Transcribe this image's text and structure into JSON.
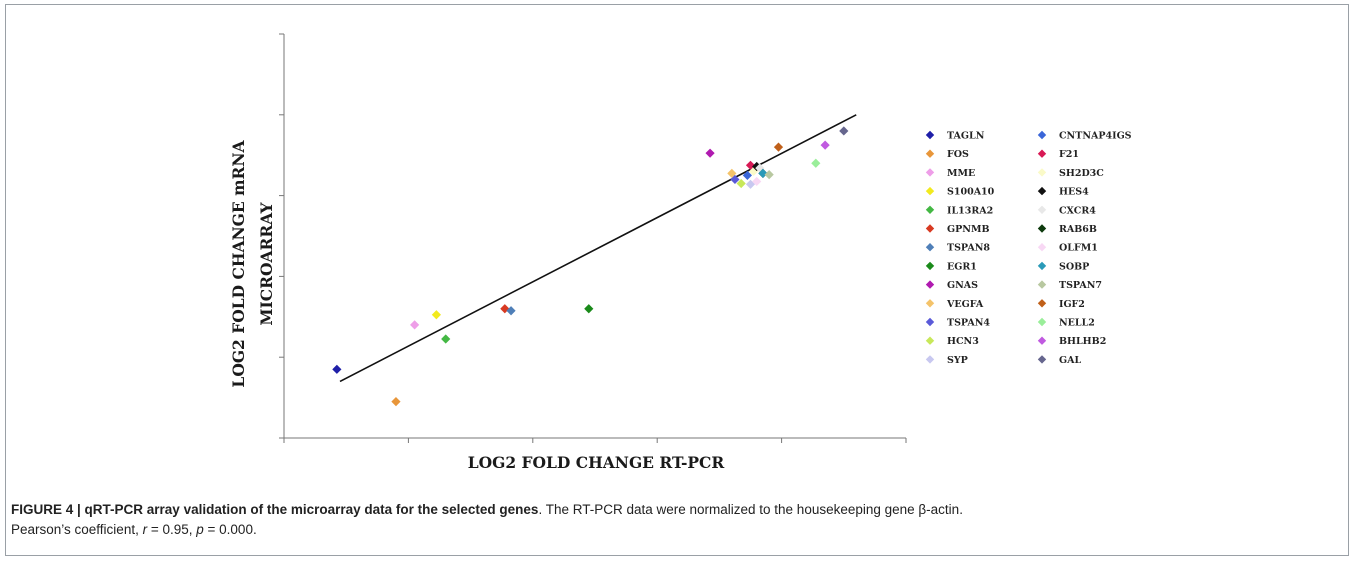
{
  "chart_data": {
    "type": "scatter",
    "xlabel": "LOG2 FOLD CHANGE RT-PCR",
    "ylabel_line1": "LOG2 FOLD CHANGE mRNA",
    "ylabel_line2": "MICROARRAY",
    "xlim": [
      -3,
      7
    ],
    "ylim": [
      -5,
      5
    ],
    "grid": false,
    "legend_position": "right",
    "trendline": {
      "from": [
        -2.1,
        -3.6
      ],
      "to": [
        6.2,
        3.0
      ]
    },
    "series": [
      {
        "name": "TAGLN",
        "color": "#1f1fa8",
        "x": -2.15,
        "y": -3.3
      },
      {
        "name": "FOS",
        "color": "#e8963a",
        "x": -1.2,
        "y": -4.1
      },
      {
        "name": "MME",
        "color": "#ee9ee8",
        "x": -0.9,
        "y": -2.2
      },
      {
        "name": "S100A10",
        "color": "#f2ea1e",
        "x": -0.55,
        "y": -1.95
      },
      {
        "name": "IL13RA2",
        "color": "#44b844",
        "x": -0.4,
        "y": -2.55
      },
      {
        "name": "GPNMB",
        "color": "#d83a22",
        "x": 0.55,
        "y": -1.8
      },
      {
        "name": "TSPAN8",
        "color": "#4f7fb8",
        "x": 0.65,
        "y": -1.85
      },
      {
        "name": "EGR1",
        "color": "#1a8a1a",
        "x": 1.9,
        "y": -1.8
      },
      {
        "name": "GNAS",
        "color": "#b01ab0",
        "x": 3.85,
        "y": 2.05
      },
      {
        "name": "VEGFA",
        "color": "#f4c36a",
        "x": 4.2,
        "y": 1.55
      },
      {
        "name": "TSPAN4",
        "color": "#5a5ad8",
        "x": 4.25,
        "y": 1.4
      },
      {
        "name": "HCN3",
        "color": "#c8e85a",
        "x": 4.35,
        "y": 1.3
      },
      {
        "name": "SYP",
        "color": "#c8c8f0",
        "x": 4.5,
        "y": 1.28
      },
      {
        "name": "CNTNAP4IGS",
        "color": "#3a66d8",
        "x": 4.45,
        "y": 1.5
      },
      {
        "name": "F21",
        "color": "#d81a55",
        "x": 4.5,
        "y": 1.75
      },
      {
        "name": "SH2D3C",
        "color": "#fafac8",
        "x": 4.55,
        "y": 1.6
      },
      {
        "name": "HES4",
        "color": "#111111",
        "x": 4.6,
        "y": 1.72
      },
      {
        "name": "CXCR4",
        "color": "#e8e8e8",
        "x": 4.65,
        "y": 1.68
      },
      {
        "name": "RAB6B",
        "color": "#0e3a0e",
        "x": 4.7,
        "y": 1.55
      },
      {
        "name": "OLFM1",
        "color": "#f8d8f4",
        "x": 4.6,
        "y": 1.35
      },
      {
        "name": "SOBP",
        "color": "#2a9ab8",
        "x": 4.7,
        "y": 1.55
      },
      {
        "name": "TSPAN7",
        "color": "#b8c8a0",
        "x": 4.8,
        "y": 1.52
      },
      {
        "name": "IGF2",
        "color": "#c0601a",
        "x": 4.95,
        "y": 2.2
      },
      {
        "name": "NELL2",
        "color": "#9aee9a",
        "x": 5.55,
        "y": 1.8
      },
      {
        "name": "BHLHB2",
        "color": "#c05ae0",
        "x": 5.7,
        "y": 2.25
      },
      {
        "name": "GAL",
        "color": "#66668e",
        "x": 6.0,
        "y": 2.6
      }
    ]
  },
  "caption": {
    "bold": "FIGURE 4 | qRT-PCR array validation of the microarray data for the selected genes",
    "line1_rest": ". The RT-PCR data were normalized to the housekeeping gene β-actin.",
    "line2_a": "Pearson’s coefficient, ",
    "r_sym": "r",
    "line2_b": " = 0.95, ",
    "p_sym": "p",
    "line2_c": " = 0.000."
  }
}
